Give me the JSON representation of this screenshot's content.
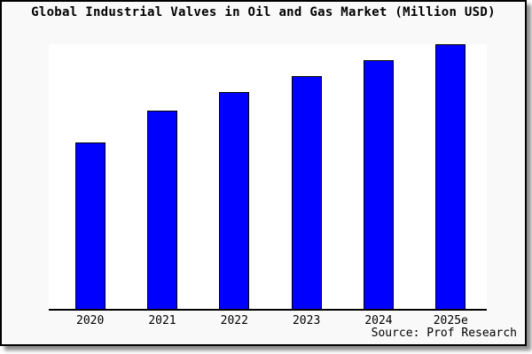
{
  "chart_data": {
    "type": "bar",
    "title": "Global Industrial Valves in Oil and Gas Market (Million USD)",
    "categories": [
      "2020",
      "2021",
      "2022",
      "2023",
      "2024",
      "2025e"
    ],
    "values": [
      63,
      75,
      82,
      88,
      94,
      100
    ],
    "values_unit": "relative bar height, % of tallest bar (2025e); no y-axis scale shown",
    "xlabel": "",
    "ylabel": "",
    "y_axis_ticks": [],
    "gridlines": false,
    "legend": false,
    "source": "Source: Prof Research",
    "bar_color": "#0000ff",
    "bar_border_color": "#000000"
  },
  "colors": {
    "card_background": "#f9f9f9",
    "plot_background": "#ffffff",
    "frame_border": "#000000",
    "axis_line": "#000000",
    "text": "#000000"
  }
}
